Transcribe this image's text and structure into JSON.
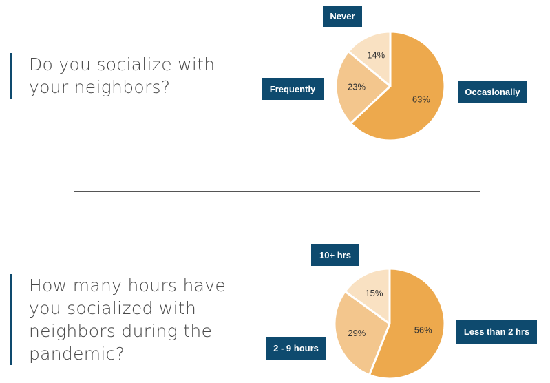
{
  "colors": {
    "tag_bg": "#0e4a6e",
    "tag_text": "#ffffff",
    "question_bar": "#0e4a6e",
    "question_text": "#4a4a4a"
  },
  "chart_data": [
    {
      "type": "pie",
      "title": "Do you socialize with your neighbors?",
      "title_lines": [
        "Do you socialize with",
        "your neighbors?"
      ],
      "slices": [
        {
          "label": "Occasionally",
          "value": 63,
          "value_label": "63%",
          "color": "#eda94d"
        },
        {
          "label": "Frequently",
          "value": 23,
          "value_label": "23%",
          "color": "#f3c68d"
        },
        {
          "label": "Never",
          "value": 14,
          "value_label": "14%",
          "color": "#f9e1c2"
        }
      ]
    },
    {
      "type": "pie",
      "title": "How many hours have you socialized with neighbors during the pandemic?",
      "title_lines": [
        "How many hours have",
        "you socialized with",
        "neighbors during the",
        "pandemic?"
      ],
      "slices": [
        {
          "label": "Less than 2 hrs",
          "value": 56,
          "value_label": "56%",
          "color": "#eda94d"
        },
        {
          "label": "2 - 9 hours",
          "value": 29,
          "value_label": "29%",
          "color": "#f3c68d"
        },
        {
          "label": "10+ hrs",
          "value": 15,
          "value_label": "15%",
          "color": "#f9e1c2"
        }
      ]
    }
  ]
}
